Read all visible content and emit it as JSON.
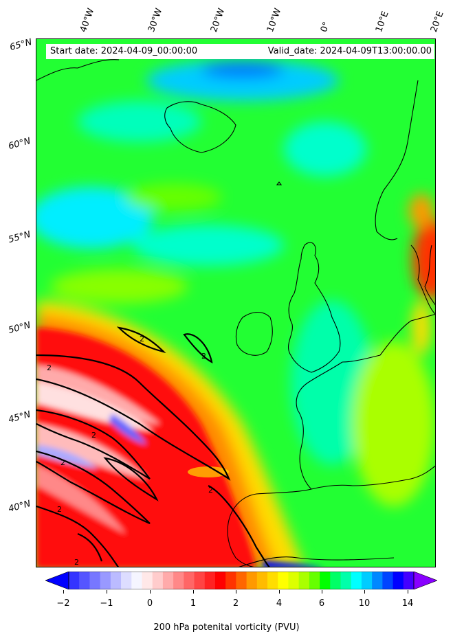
{
  "map": {
    "start_text": "Start date: 2024-04-09_00:00:00",
    "valid_text": "Valid_date: 2024-04-09T13:00:00.00",
    "lon_labels": [
      "40°W",
      "30°W",
      "20°W",
      "10°W",
      "0°",
      "10°E",
      "20°E"
    ],
    "lat_labels": [
      "65°N",
      "60°N",
      "55°N",
      "50°N",
      "45°N",
      "40°N"
    ],
    "contour_label": "2"
  },
  "colorbar": {
    "label": "200 hPa potenital vorticity (PVU)",
    "ticks": [
      "−2",
      "−1",
      "0",
      "1",
      "2",
      "4",
      "6",
      "10",
      "14"
    ],
    "colors": [
      "#0000ff",
      "#3333ff",
      "#5555ff",
      "#7777ff",
      "#9999ff",
      "#bbbbff",
      "#ddddff",
      "#f5f5ff",
      "#ffe8e8",
      "#ffcccc",
      "#ffaaaa",
      "#ff8888",
      "#ff6666",
      "#ff4444",
      "#ff2222",
      "#ff0000",
      "#ff3300",
      "#ff6600",
      "#ff9900",
      "#ffbb00",
      "#ffdd00",
      "#ffff00",
      "#ddff00",
      "#aaff00",
      "#66ff00",
      "#00ff00",
      "#00ff66",
      "#00ffaa",
      "#00ffff",
      "#00ccff",
      "#0088ff",
      "#0044ff",
      "#0000ff",
      "#4400ff",
      "#8800ff"
    ]
  }
}
